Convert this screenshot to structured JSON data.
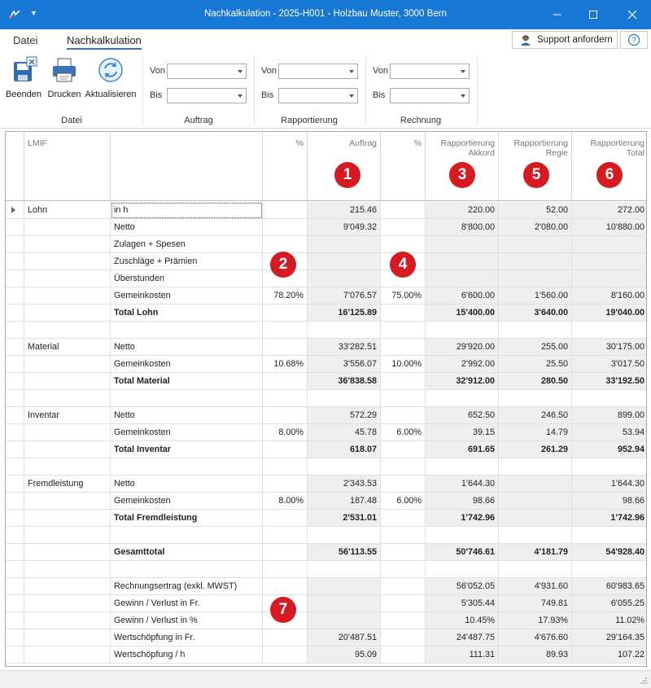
{
  "window": {
    "title": "Nachkalkulation - 2025-H001 - Holzbau Muster, 3000 Bern"
  },
  "ribbon": {
    "tabs": [
      "Datei",
      "Nachkalkulation"
    ],
    "active_tab": "Nachkalkulation",
    "support_label": "Support anfordern",
    "buttons": {
      "beenden": "Beenden",
      "drucken": "Drucken",
      "aktualisieren": "Aktualisieren"
    },
    "groups": {
      "datei": "Datei",
      "auftrag": "Auftrag",
      "rapportierung": "Rapportierung",
      "rechnung": "Rechnung"
    },
    "filter_labels": {
      "von": "Von",
      "bis": "Bis"
    }
  },
  "grid": {
    "headers": {
      "lmif": "LMIF",
      "pct1": "%",
      "auftrag": "Auftrag",
      "pct2": "%",
      "rap_akkord": "Rapportierung Akkord",
      "rap_regie": "Rapportierung Regie",
      "rap_total": "Rapportierung Total"
    },
    "rows": [
      {
        "group": "Lohn",
        "label": "in h",
        "p1": "",
        "auftrag": "215.46",
        "p2": "",
        "akkord": "220.00",
        "regie": "52.00",
        "total": "272.00",
        "bold": false
      },
      {
        "group": "",
        "label": "Netto",
        "p1": "",
        "auftrag": "9'049.32",
        "p2": "",
        "akkord": "8'800.00",
        "regie": "2'080.00",
        "total": "10'880.00",
        "bold": false
      },
      {
        "group": "",
        "label": "Zulagen + Spesen",
        "p1": "",
        "auftrag": "",
        "p2": "",
        "akkord": "",
        "regie": "",
        "total": "",
        "bold": false
      },
      {
        "group": "",
        "label": "Zuschläge + Prämien",
        "p1": "",
        "auftrag": "",
        "p2": "",
        "akkord": "",
        "regie": "",
        "total": "",
        "bold": false
      },
      {
        "group": "",
        "label": "Überstunden",
        "p1": "",
        "auftrag": "",
        "p2": "",
        "akkord": "",
        "regie": "",
        "total": "",
        "bold": false
      },
      {
        "group": "",
        "label": "Gemeinkosten",
        "p1": "78.20%",
        "auftrag": "7'076.57",
        "p2": "75.00%",
        "akkord": "6'600.00",
        "regie": "1'560.00",
        "total": "8'160.00",
        "bold": false
      },
      {
        "group": "",
        "label": "Total Lohn",
        "p1": "",
        "auftrag": "16'125.89",
        "p2": "",
        "akkord": "15'400.00",
        "regie": "3'640.00",
        "total": "19'040.00",
        "bold": true
      },
      {
        "group": "",
        "label": "",
        "p1": "",
        "auftrag": "",
        "p2": "",
        "akkord": "",
        "regie": "",
        "total": "",
        "bold": false,
        "blank": true
      },
      {
        "group": "Material",
        "label": "Netto",
        "p1": "",
        "auftrag": "33'282.51",
        "p2": "",
        "akkord": "29'920.00",
        "regie": "255.00",
        "total": "30'175.00",
        "bold": false
      },
      {
        "group": "",
        "label": "Gemeinkosten",
        "p1": "10.68%",
        "auftrag": "3'556.07",
        "p2": "10.00%",
        "akkord": "2'992.00",
        "regie": "25.50",
        "total": "3'017.50",
        "bold": false
      },
      {
        "group": "",
        "label": "Total Material",
        "p1": "",
        "auftrag": "36'838.58",
        "p2": "",
        "akkord": "32'912.00",
        "regie": "280.50",
        "total": "33'192.50",
        "bold": true
      },
      {
        "group": "",
        "label": "",
        "p1": "",
        "auftrag": "",
        "p2": "",
        "akkord": "",
        "regie": "",
        "total": "",
        "bold": false,
        "blank": true
      },
      {
        "group": "Inventar",
        "label": "Netto",
        "p1": "",
        "auftrag": "572.29",
        "p2": "",
        "akkord": "652.50",
        "regie": "246.50",
        "total": "899.00",
        "bold": false
      },
      {
        "group": "",
        "label": "Gemeinkosten",
        "p1": "8.00%",
        "auftrag": "45.78",
        "p2": "6.00%",
        "akkord": "39.15",
        "regie": "14.79",
        "total": "53.94",
        "bold": false
      },
      {
        "group": "",
        "label": "Total Inventar",
        "p1": "",
        "auftrag": "618.07",
        "p2": "",
        "akkord": "691.65",
        "regie": "261.29",
        "total": "952.94",
        "bold": true
      },
      {
        "group": "",
        "label": "",
        "p1": "",
        "auftrag": "",
        "p2": "",
        "akkord": "",
        "regie": "",
        "total": "",
        "bold": false,
        "blank": true
      },
      {
        "group": "Fremdleistung",
        "label": "Netto",
        "p1": "",
        "auftrag": "2'343.53",
        "p2": "",
        "akkord": "1'644.30",
        "regie": "",
        "total": "1'644.30",
        "bold": false
      },
      {
        "group": "",
        "label": "Gemeinkosten",
        "p1": "8.00%",
        "auftrag": "187.48",
        "p2": "6.00%",
        "akkord": "98.66",
        "regie": "",
        "total": "98.66",
        "bold": false
      },
      {
        "group": "",
        "label": "Total Fremdleistung",
        "p1": "",
        "auftrag": "2'531.01",
        "p2": "",
        "akkord": "1'742.96",
        "regie": "",
        "total": "1'742.96",
        "bold": true
      },
      {
        "group": "",
        "label": "",
        "p1": "",
        "auftrag": "",
        "p2": "",
        "akkord": "",
        "regie": "",
        "total": "",
        "bold": false,
        "blank": true
      },
      {
        "group": "",
        "label": "Gesamttotal",
        "p1": "",
        "auftrag": "56'113.55",
        "p2": "",
        "akkord": "50'746.61",
        "regie": "4'181.79",
        "total": "54'928.40",
        "bold": true
      },
      {
        "group": "",
        "label": "",
        "p1": "",
        "auftrag": "",
        "p2": "",
        "akkord": "",
        "regie": "",
        "total": "",
        "bold": false,
        "blank": true
      },
      {
        "group": "",
        "label": "Rechnungsertrag (exkl. MWST)",
        "p1": "",
        "auftrag": "",
        "p2": "",
        "akkord": "56'052.05",
        "regie": "4'931.60",
        "total": "60'983.65",
        "bold": false
      },
      {
        "group": "",
        "label": "Gewinn / Verlust in Fr.",
        "p1": "",
        "auftrag": "",
        "p2": "",
        "akkord": "5'305.44",
        "regie": "749.81",
        "total": "6'055.25",
        "bold": false
      },
      {
        "group": "",
        "label": "Gewinn / Verlust in %",
        "p1": "",
        "auftrag": "",
        "p2": "",
        "akkord": "10.45%",
        "regie": "17.93%",
        "total": "11.02%",
        "bold": false
      },
      {
        "group": "",
        "label": "Wertschöpfung in Fr.",
        "p1": "",
        "auftrag": "20'487.51",
        "p2": "",
        "akkord": "24'487.75",
        "regie": "4'676.60",
        "total": "29'164.35",
        "bold": false
      },
      {
        "group": "",
        "label": "Wertschöpfung / h",
        "p1": "",
        "auftrag": "95.09",
        "p2": "",
        "akkord": "111.31",
        "regie": "89.93",
        "total": "107.22",
        "bold": false
      }
    ]
  },
  "badges": [
    "1",
    "2",
    "3",
    "4",
    "5",
    "6",
    "7"
  ],
  "colors": {
    "titlebar": "#1777d4",
    "badge": "#d71a21",
    "accent": "#2b79c2"
  }
}
